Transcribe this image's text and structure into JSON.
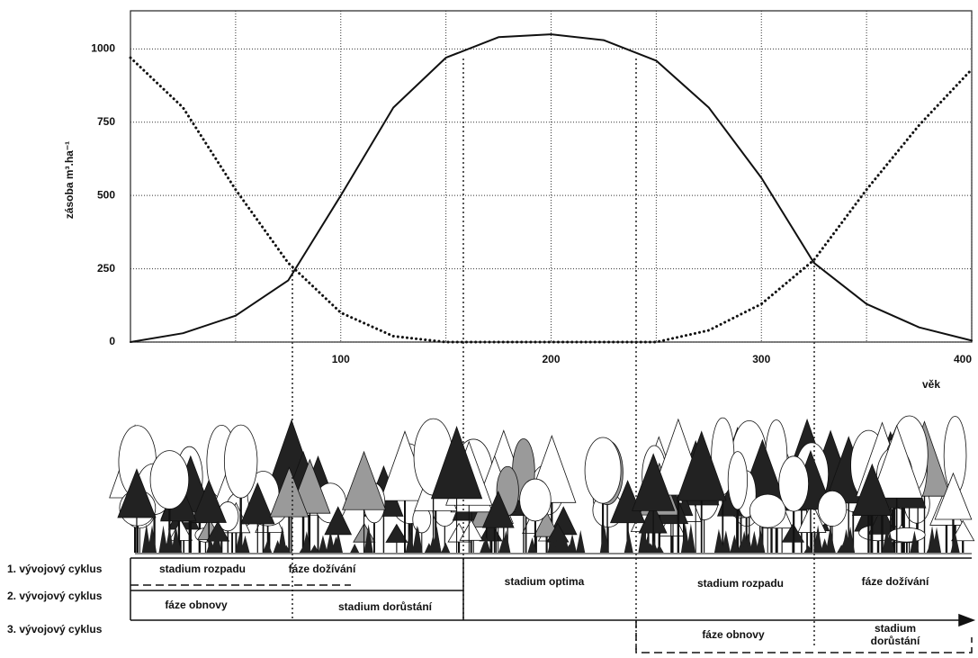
{
  "chart_data": {
    "type": "line",
    "y_label": "zásoba m³.ha⁻¹",
    "x_label": "věk",
    "xlim": [
      0,
      400
    ],
    "ylim": [
      0,
      1130
    ],
    "xticks": [
      100,
      200,
      300,
      400
    ],
    "minor_xticks": [
      50,
      150,
      250,
      350
    ],
    "yticks": [
      0,
      250,
      500,
      750,
      1000
    ],
    "grid": true,
    "x": [
      0,
      25,
      50,
      75,
      100,
      125,
      150,
      175,
      200,
      225,
      250,
      275,
      300,
      325,
      350,
      375,
      400
    ],
    "series": [
      {
        "color": "#111111",
        "line_style": "solid",
        "values": [
          0,
          30,
          90,
          210,
          500,
          800,
          970,
          1040,
          1050,
          1030,
          960,
          800,
          560,
          270,
          130,
          50,
          5
        ]
      },
      {
        "color": "#111111",
        "line_style": "dotted",
        "values": [
          970,
          800,
          520,
          270,
          100,
          20,
          0,
          0,
          0,
          0,
          0,
          40,
          130,
          280,
          520,
          740,
          930
        ]
      }
    ]
  },
  "cycles": {
    "labels": [
      "1. vývojový cyklus",
      "2. vývojový cyklus",
      "3. vývojový cyklus"
    ],
    "phases": [
      "stadium rozpadu",
      "fáze dožívání",
      "fáze obnovy",
      "stadium dorůstání",
      "stadium optima",
      "stadium rozpadu",
      "fáze dožívání",
      "fáze obnovy",
      "stadium",
      "dorůstání"
    ]
  }
}
